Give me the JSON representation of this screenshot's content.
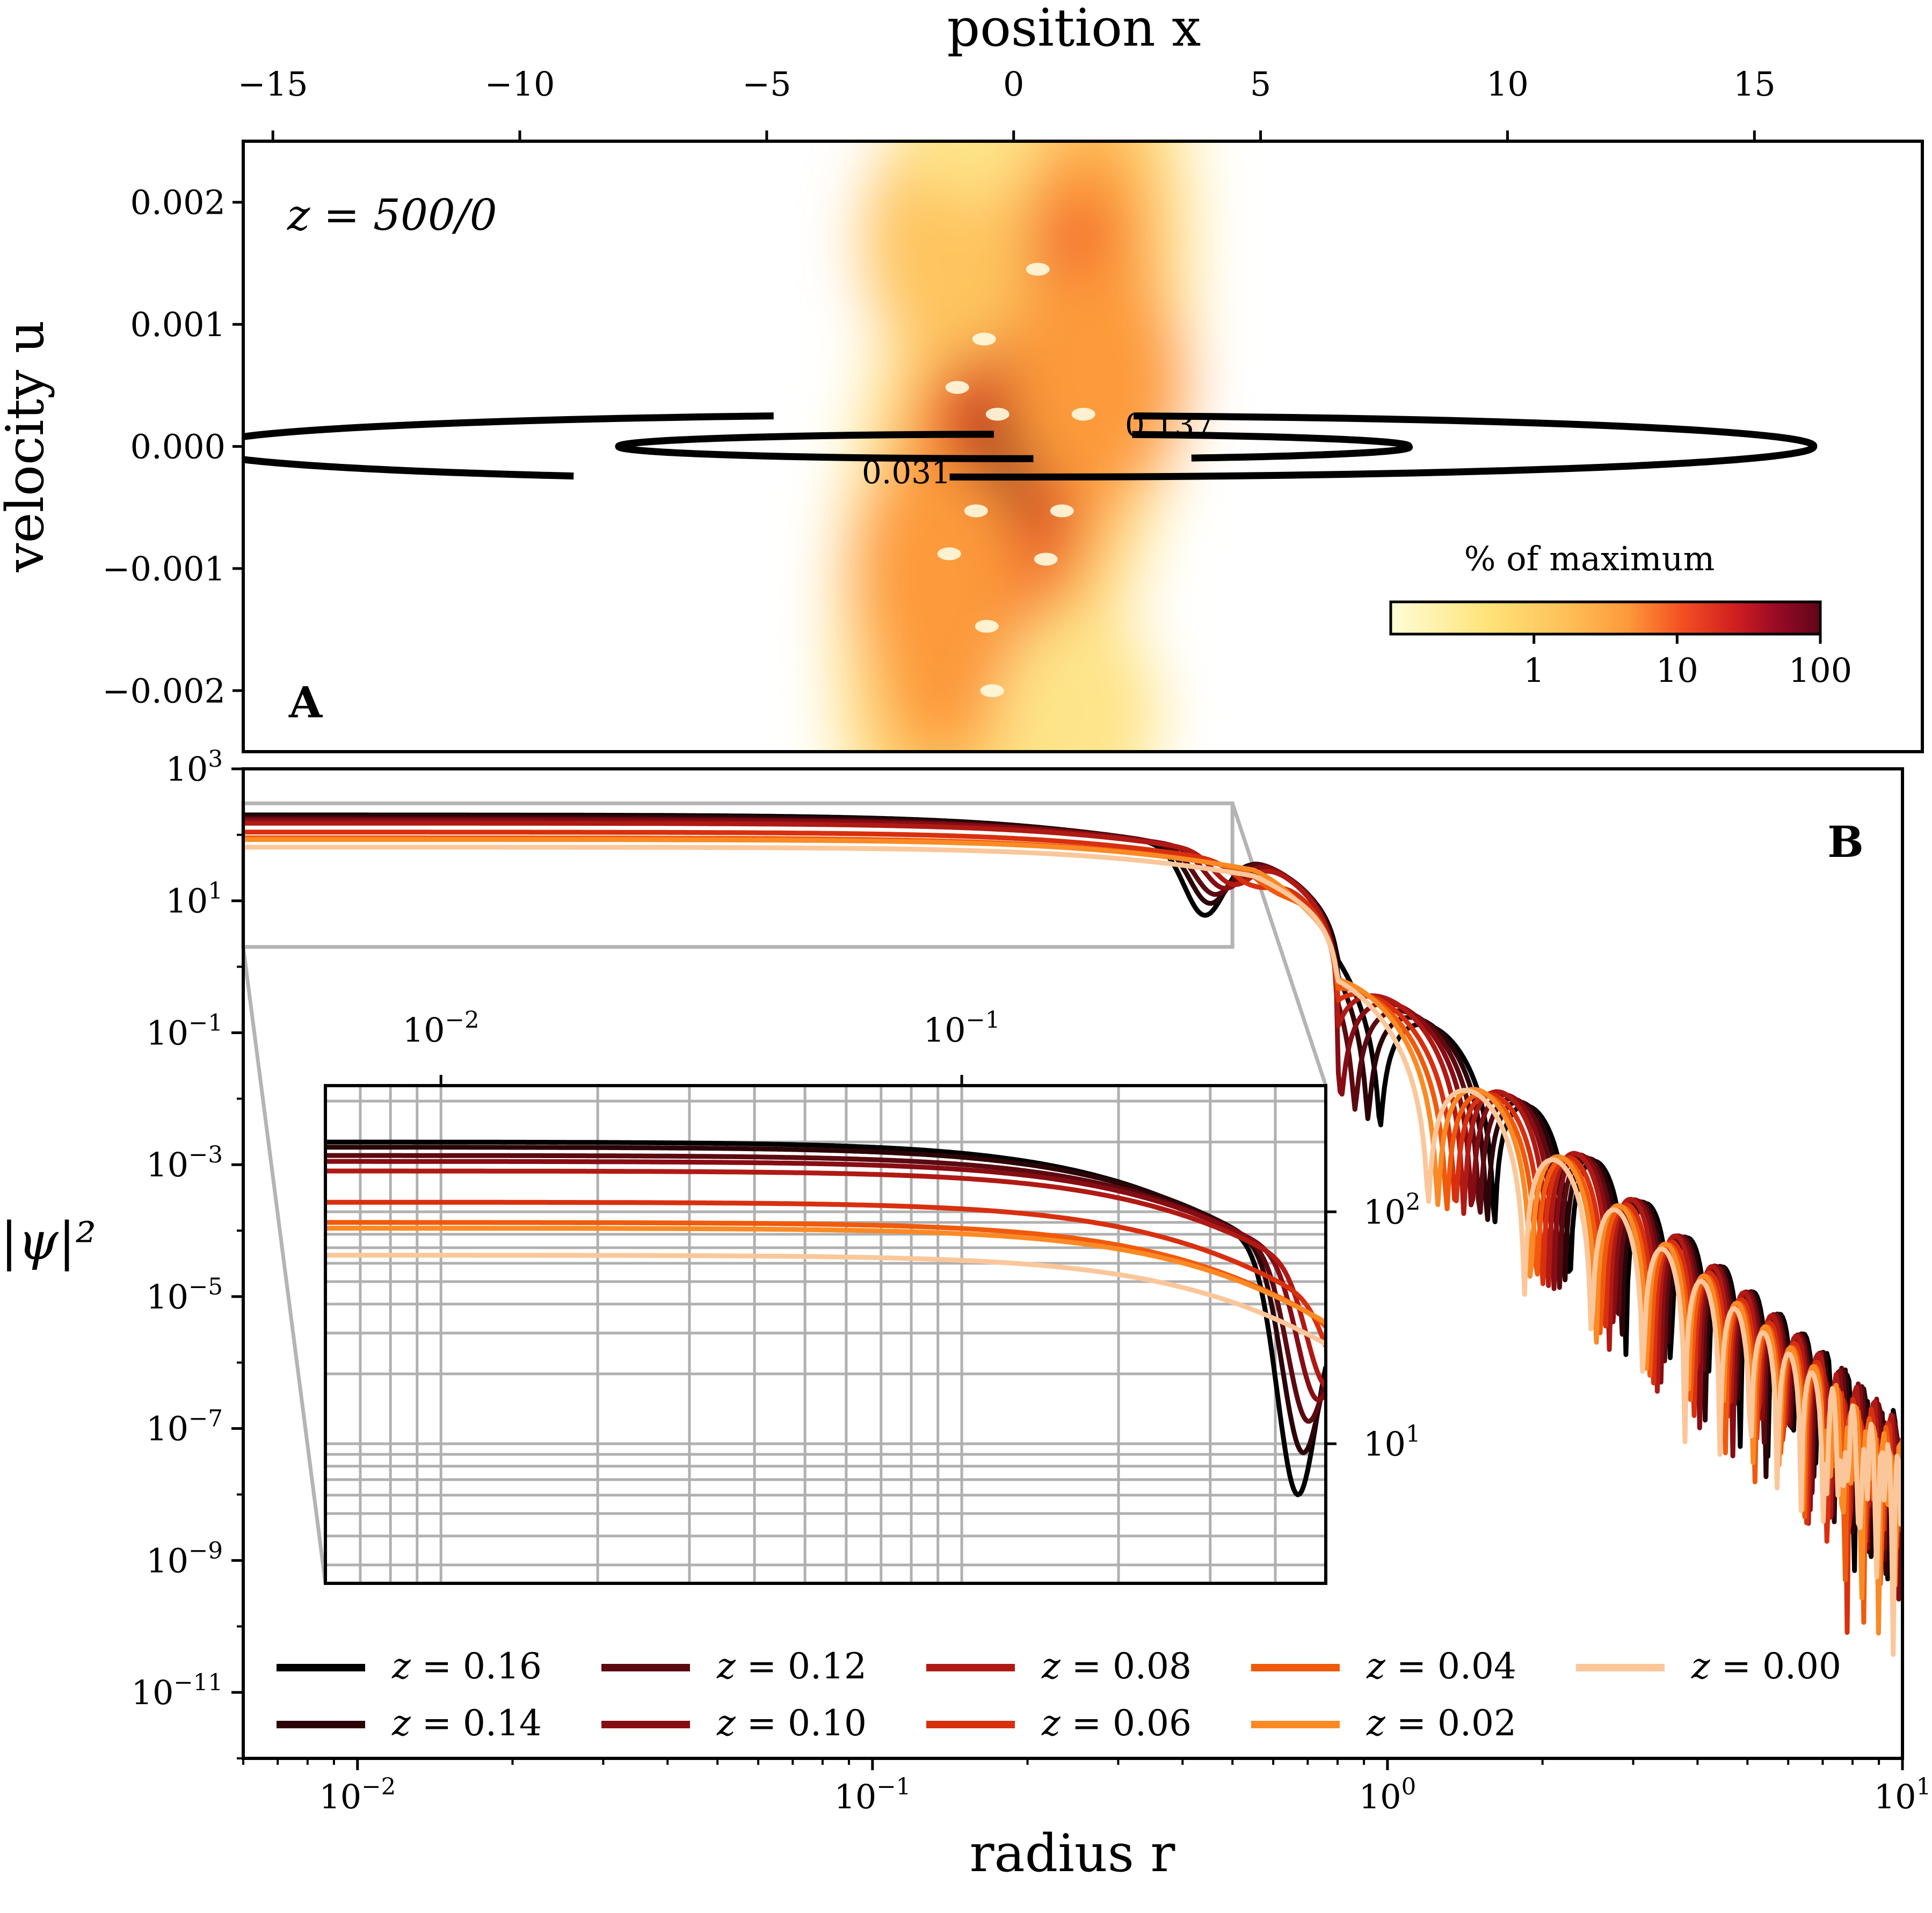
{
  "chart_data": [
    {
      "id": "A",
      "type": "heatmap",
      "panel_label": "A",
      "annotation": "z = 500/0",
      "xlabel": "position x",
      "ylabel": "velocity u",
      "xlim": [
        -15.6,
        18.4
      ],
      "ylim": [
        -0.0025,
        0.0025
      ],
      "x_ticks": [
        -15,
        -10,
        -5,
        0,
        5,
        10,
        15
      ],
      "x_tick_labels": [
        "−15",
        "−10",
        "−5",
        "0",
        "5",
        "10",
        "15"
      ],
      "y_ticks": [
        0.002,
        0.001,
        0.0,
        -0.001,
        -0.002
      ],
      "y_tick_labels": [
        "0.002",
        "0.001",
        "0.000",
        "−0.001",
        "−0.002"
      ],
      "density_center": {
        "x": 0,
        "u": 0
      },
      "density_extent": {
        "x": [
          -3.5,
          3.5
        ],
        "u": [
          -0.002,
          0.002
        ]
      },
      "contours": [
        {
          "level": "0.137",
          "semi_axis_x": 16.2,
          "semi_axis_u": 0.00025
        },
        {
          "level": "0.031",
          "semi_axis_x": 8.0,
          "semi_axis_u": 0.0001
        }
      ],
      "colorbar": {
        "title": "% of maximum",
        "scale": "log",
        "range": [
          0.1,
          100
        ],
        "ticks": [
          1,
          10,
          100
        ],
        "tick_labels": [
          "1",
          "10",
          "100"
        ],
        "colors": [
          "#fffdd8",
          "#fee47a",
          "#fd9a3b",
          "#f24f22",
          "#d11f20",
          "#980a25",
          "#600619"
        ]
      }
    },
    {
      "id": "B",
      "type": "line",
      "panel_label": "B",
      "xlabel": "radius r",
      "ylabel": "|ψ|²",
      "xscale": "log",
      "yscale": "log",
      "xlim": [
        0.006,
        10
      ],
      "ylim": [
        1e-12,
        1000
      ],
      "x_ticks": [
        0.01,
        0.1,
        1,
        10
      ],
      "x_tick_labels": [
        [
          "10",
          "−2"
        ],
        [
          "10",
          "−1"
        ],
        [
          "10",
          "0"
        ],
        [
          "10",
          "1"
        ]
      ],
      "y_ticks": [
        1000,
        10,
        0.1,
        0.001,
        1e-05,
        1e-07,
        1e-09,
        1e-11
      ],
      "y_tick_labels": [
        [
          "10",
          "3"
        ],
        [
          "10",
          "1"
        ],
        [
          "10",
          "−1"
        ],
        [
          "10",
          "−3"
        ],
        [
          "10",
          "−5"
        ],
        [
          "10",
          "−7"
        ],
        [
          "10",
          "−9"
        ],
        [
          "10",
          "−11"
        ]
      ],
      "series": [
        {
          "name": "z = 0.16",
          "label": "z = 0.16",
          "color": "#000000",
          "plateau": 200,
          "dip_r": 0.44,
          "dip_val": 3.5
        },
        {
          "name": "z = 0.14",
          "label": "z = 0.14",
          "color": "#2c0408",
          "plateau": 190,
          "dip_r": 0.45,
          "dip_val": 7
        },
        {
          "name": "z = 0.12",
          "label": "z = 0.12",
          "color": "#5a0a10",
          "plateau": 175,
          "dip_r": 0.46,
          "dip_val": 12
        },
        {
          "name": "z = 0.10",
          "label": "z = 0.10",
          "color": "#870c14",
          "plateau": 165,
          "dip_r": 0.48,
          "dip_val": 18
        },
        {
          "name": "z = 0.08",
          "label": "z = 0.08",
          "color": "#b01a14",
          "plateau": 150,
          "dip_r": 0.5,
          "dip_val": 24
        },
        {
          "name": "z = 0.06",
          "label": "z = 0.06",
          "color": "#d8300f",
          "plateau": 110,
          "dip_r": 0.55,
          "dip_val": 32
        },
        {
          "name": "z = 0.04",
          "label": "z = 0.04",
          "color": "#f05a0c",
          "plateau": 90,
          "dip_r": 0.6,
          "dip_val": 45
        },
        {
          "name": "z = 0.02",
          "label": "z = 0.02",
          "color": "#fb8a25",
          "plateau": 85,
          "dip_r": 0.7,
          "dip_val": 60
        },
        {
          "name": "z = 0.00",
          "label": "z = 0.00",
          "color": "#fbc79a",
          "plateau": 65,
          "dip_r": 0.75,
          "dip_val": 70
        }
      ],
      "zoom_region": {
        "xlim": [
          0.006,
          0.5
        ],
        "ylim": [
          2,
          300
        ]
      },
      "inset": {
        "xscale": "log",
        "yscale": "log",
        "xlim": [
          0.006,
          0.5
        ],
        "ylim": [
          2.5,
          350
        ],
        "x_ticks": [
          0.01,
          0.1
        ],
        "x_tick_labels": [
          [
            "10",
            "−2"
          ],
          [
            "10",
            "−1"
          ]
        ],
        "y_ticks": [
          100,
          10
        ],
        "y_tick_labels": [
          [
            "10",
            "2"
          ],
          [
            "10",
            "1"
          ]
        ]
      }
    }
  ]
}
